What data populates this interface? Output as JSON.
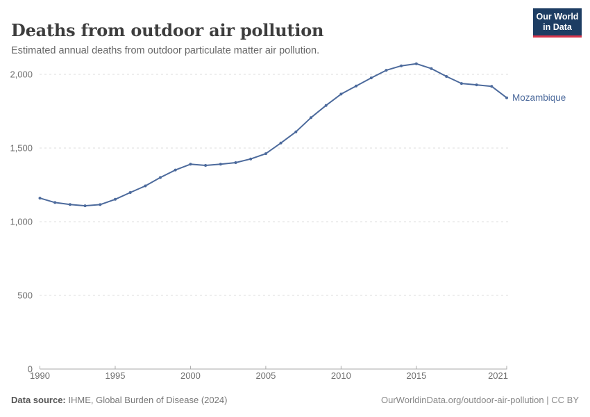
{
  "header": {
    "title": "Deaths from outdoor air pollution",
    "subtitle": "Estimated annual deaths from outdoor particulate matter air pollution.",
    "logo": {
      "line1": "Our World",
      "line2": "in Data",
      "bg_color": "#1d3d63",
      "accent_color": "#d8354b"
    }
  },
  "chart_data": {
    "type": "line",
    "title": "Deaths from outdoor air pollution",
    "subtitle": "Estimated annual deaths from outdoor particulate matter air pollution.",
    "xlabel": "",
    "ylabel": "",
    "x": [
      1990,
      1991,
      1992,
      1993,
      1994,
      1995,
      1996,
      1997,
      1998,
      1999,
      2000,
      2001,
      2002,
      2003,
      2004,
      2005,
      2006,
      2007,
      2008,
      2009,
      2010,
      2011,
      2012,
      2013,
      2014,
      2015,
      2016,
      2017,
      2018,
      2019,
      2020,
      2021
    ],
    "series": [
      {
        "name": "Mozambique",
        "color": "#4C6A9C",
        "values": [
          1160,
          1130,
          1117,
          1108,
          1116,
          1152,
          1198,
          1243,
          1300,
          1351,
          1390,
          1382,
          1390,
          1401,
          1426,
          1462,
          1534,
          1610,
          1706,
          1789,
          1866,
          1921,
          1976,
          2028,
          2058,
          2072,
          2039,
          1986,
          1938,
          1929,
          1919,
          1841
        ]
      }
    ],
    "xticks": [
      1990,
      1995,
      2000,
      2005,
      2010,
      2015,
      2021
    ],
    "xtick_labels": [
      "1990",
      "1995",
      "2000",
      "2005",
      "2010",
      "2015",
      "2021"
    ],
    "yticks": [
      0,
      500,
      1000,
      1500,
      2000
    ],
    "ytick_labels": [
      "0",
      "500",
      "1,000",
      "1,500",
      "2,000"
    ],
    "ylim": [
      0,
      2100
    ],
    "xlim": [
      1990,
      2021
    ],
    "grid": {
      "horizontal": true,
      "style": "dashed",
      "color": "#dcdcdc"
    },
    "axis_color": "#a9a9a9",
    "tick_label_color": "#6e6e6e",
    "marker": "dot",
    "legend": "end-of-line-label"
  },
  "footer": {
    "source_label": "Data source:",
    "source": "IHME, Global Burden of Disease (2024)",
    "citation": "OurWorldinData.org/outdoor-air-pollution",
    "separator": "|",
    "license": "CC BY"
  }
}
